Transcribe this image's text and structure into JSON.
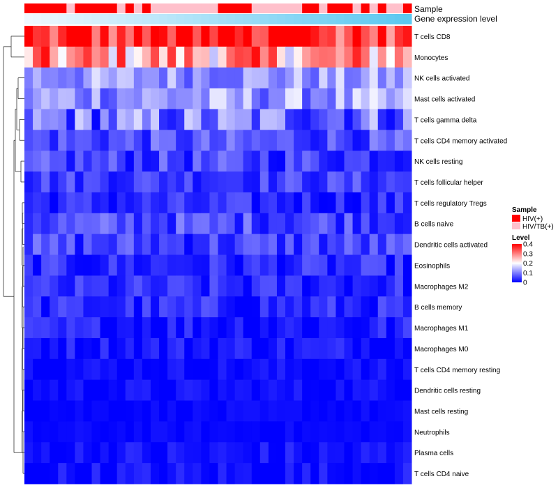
{
  "chart_data": {
    "type": "heatmap",
    "title": "",
    "rows": [
      "T cells CD8",
      "Monocytes",
      "NK cells activated",
      "Mast cells activated",
      "T cells gamma delta",
      "T cells CD4 memory activated",
      "NK cells resting",
      "T cells follicular helper",
      "T cells regulatory  Tregs",
      "B cells naive",
      "Dendritic cells activated",
      "Eosinophils",
      "Macrophages M2",
      "B cells memory",
      "Macrophages M1",
      "Macrophages M0",
      "T cells CD4 memory resting",
      "Dendritic cells resting",
      "Mast cells resting",
      "Neutrophils",
      "Plasma cells",
      "T cells CD4 naive"
    ],
    "n_columns": 46,
    "row_base_levels": [
      0.34,
      0.27,
      0.12,
      0.12,
      0.09,
      0.06,
      0.05,
      0.05,
      0.03,
      0.06,
      0.05,
      0.03,
      0.03,
      0.03,
      0.02,
      0.02,
      0.01,
      0.01,
      0.005,
      0.005,
      0.01,
      0.01
    ],
    "row_spread": [
      0.07,
      0.12,
      0.06,
      0.07,
      0.09,
      0.05,
      0.05,
      0.04,
      0.04,
      0.05,
      0.05,
      0.04,
      0.04,
      0.04,
      0.04,
      0.03,
      0.02,
      0.02,
      0.01,
      0.01,
      0.03,
      0.03
    ],
    "sample_groups": [
      "HIV(+)",
      "HIV(+)",
      "HIV(+)",
      "HIV(+)",
      "HIV(+)",
      "HIV/TB(+)",
      "HIV(+)",
      "HIV(+)",
      "HIV(+)",
      "HIV(+)",
      "HIV(+)",
      "HIV/TB(+)",
      "HIV(+)",
      "HIV/TB(+)",
      "HIV(+)",
      "HIV/TB(+)",
      "HIV/TB(+)",
      "HIV/TB(+)",
      "HIV/TB(+)",
      "HIV/TB(+)",
      "HIV/TB(+)",
      "HIV/TB(+)",
      "HIV/TB(+)",
      "HIV(+)",
      "HIV(+)",
      "HIV(+)",
      "HIV(+)",
      "HIV/TB(+)",
      "HIV/TB(+)",
      "HIV/TB(+)",
      "HIV/TB(+)",
      "HIV/TB(+)",
      "HIV/TB(+)",
      "HIV(+)",
      "HIV(+)",
      "HIV/TB(+)",
      "HIV(+)",
      "HIV(+)",
      "HIV(+)",
      "HIV/TB(+)",
      "HIV(+)",
      "HIV/TB(+)",
      "HIV(+)",
      "HIV/TB(+)",
      "HIV/TB(+)",
      "HIV(+)"
    ],
    "annotations": {
      "sample_label": "Sample",
      "expression_label": "Gene expression level"
    },
    "color_scale": {
      "low": "#0000FF",
      "mid": "#FFFFFF",
      "high": "#FF0000",
      "min": 0,
      "mid_value": 0.2,
      "max": 0.4
    },
    "legend": {
      "sample_title": "Sample",
      "sample_entries": [
        {
          "label": "HIV(+)",
          "color": "#FF0000"
        },
        {
          "label": "HIV/TB(+)",
          "color": "#FFC0CB"
        }
      ],
      "level_title": "Level",
      "level_ticks": [
        "0.4",
        "0.3",
        "0.2",
        "0.1",
        "0"
      ],
      "level_tick_values": [
        0.4,
        0.3,
        0.2,
        0.1,
        0
      ]
    },
    "expression_bar_colors": [
      "#F0F8FF",
      "#5BC8F0"
    ]
  }
}
